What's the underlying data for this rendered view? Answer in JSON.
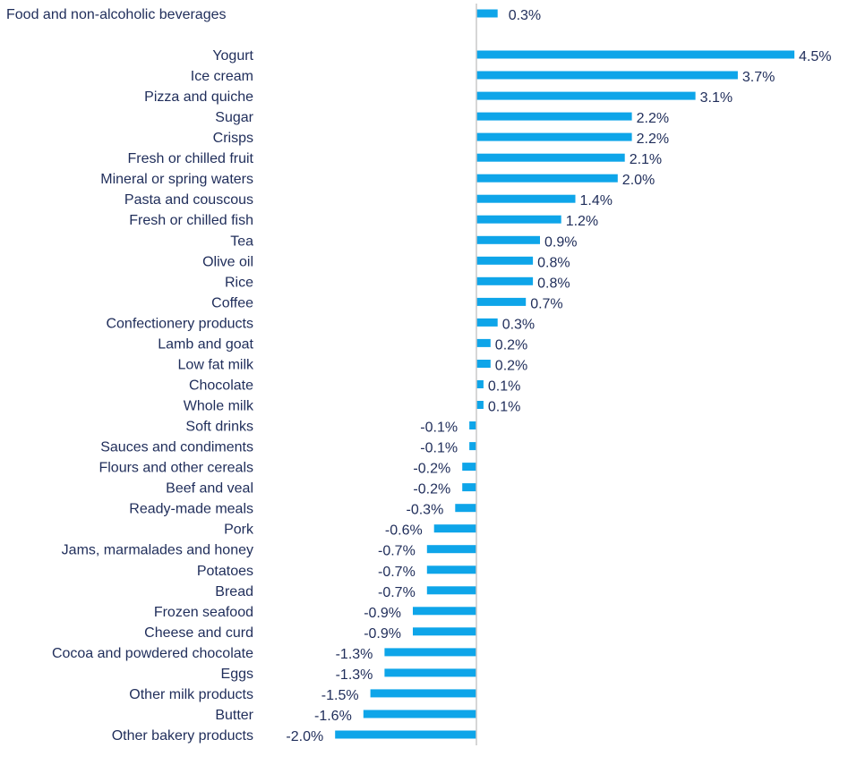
{
  "chart_data": {
    "type": "bar",
    "orientation": "horizontal",
    "title": "",
    "xlabel": "",
    "ylabel": "",
    "xlim": [
      -2.0,
      4.5
    ],
    "grid": false,
    "legend": "none",
    "bar_color": "#0ea5e9",
    "axis_color": "#c8c8c8",
    "text_color": "#1f2d5a",
    "summary": {
      "category": "Food and non-alcoholic beverages",
      "value": 0.3,
      "label": "0.3%"
    },
    "categories": [
      "Yogurt",
      "Ice cream",
      "Pizza and quiche",
      "Sugar",
      "Crisps",
      "Fresh or chilled fruit",
      "Mineral or spring waters",
      "Pasta and couscous",
      "Fresh or chilled fish",
      "Tea",
      "Olive oil",
      "Rice",
      "Coffee",
      "Confectionery products",
      "Lamb and goat",
      "Low fat milk",
      "Chocolate",
      "Whole milk",
      "Soft drinks",
      "Sauces and condiments",
      "Flours and other cereals",
      "Beef and veal",
      "Ready-made meals",
      "Pork",
      "Jams, marmalades and honey",
      "Potatoes",
      "Bread",
      "Frozen seafood",
      "Cheese and curd",
      "Cocoa and powdered chocolate",
      "Eggs",
      "Other milk products",
      "Butter",
      "Other bakery products"
    ],
    "values": [
      4.5,
      3.7,
      3.1,
      2.2,
      2.2,
      2.1,
      2.0,
      1.4,
      1.2,
      0.9,
      0.8,
      0.8,
      0.7,
      0.3,
      0.2,
      0.2,
      0.1,
      0.1,
      -0.1,
      -0.1,
      -0.2,
      -0.2,
      -0.3,
      -0.6,
      -0.7,
      -0.7,
      -0.7,
      -0.9,
      -0.9,
      -1.3,
      -1.3,
      -1.5,
      -1.6,
      -2.0
    ],
    "value_labels": [
      "4.5%",
      "3.7%",
      "3.1%",
      "2.2%",
      "2.2%",
      "2.1%",
      "2.0%",
      "1.4%",
      "1.2%",
      "0.9%",
      "0.8%",
      "0.8%",
      "0.7%",
      "0.3%",
      "0.2%",
      "0.2%",
      "0.1%",
      "0.1%",
      "-0.1%",
      "-0.1%",
      "-0.2%",
      "-0.2%",
      "-0.3%",
      "-0.6%",
      "-0.7%",
      "-0.7%",
      "-0.7%",
      "-0.9%",
      "-0.9%",
      "-1.3%",
      "-1.3%",
      "-1.5%",
      "-1.6%",
      "-2.0%"
    ]
  }
}
